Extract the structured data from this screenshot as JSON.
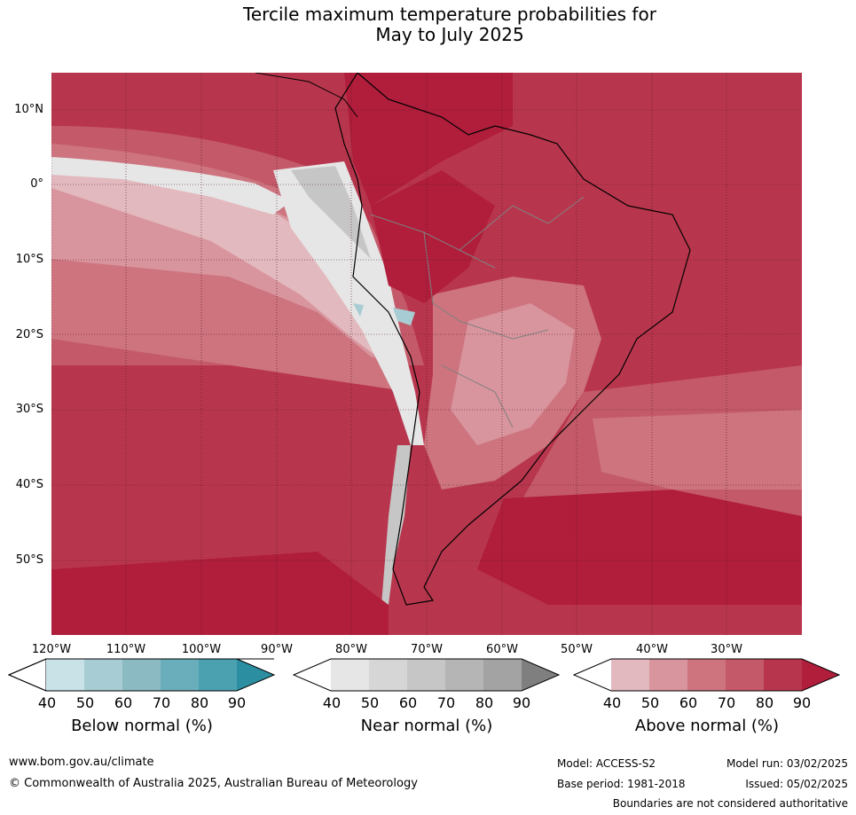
{
  "title_line1": "Tercile maximum temperature probabilities for",
  "title_line2": "May to July 2025",
  "lat_labels": [
    "10°N",
    "0°",
    "10°S",
    "20°S",
    "30°S",
    "40°S",
    "50°S"
  ],
  "lon_labels": [
    "120°W",
    "110°W",
    "100°W",
    "90°W",
    "80°W",
    "70°W",
    "60°W",
    "50°W",
    "40°W",
    "30°W"
  ],
  "colorbars": [
    {
      "title": "Below normal (%)",
      "ticks": [
        "40",
        "50",
        "60",
        "70",
        "80",
        "90"
      ],
      "colors": [
        "#ffffff",
        "#c9e2e8",
        "#a8ccd3",
        "#8bbac3",
        "#6aaebb",
        "#4ba1b0",
        "#2c8fa1"
      ]
    },
    {
      "title": "Near normal (%)",
      "ticks": [
        "40",
        "50",
        "60",
        "70",
        "80",
        "90"
      ],
      "colors": [
        "#ffffff",
        "#e6e6e6",
        "#d6d6d6",
        "#c6c6c6",
        "#b5b5b5",
        "#a3a3a3",
        "#7f7f7f"
      ]
    },
    {
      "title": "Above normal (%)",
      "ticks": [
        "40",
        "50",
        "60",
        "70",
        "80",
        "90"
      ],
      "colors": [
        "#ffffff",
        "#e2b9be",
        "#d9959e",
        "#cd747f",
        "#c45a69",
        "#b8364d",
        "#b01e3c"
      ]
    }
  ],
  "footer": {
    "website": "www.bom.gov.au/climate",
    "copyright": "© Commonwealth of Australia 2025, Australian Bureau of Meteorology",
    "model": "Model: ACCESS-S2",
    "base_period": "Base period: 1981-2018",
    "model_run": "Model run: 03/02/2025",
    "issued": "Issued: 05/02/2025",
    "disclaimer": "Boundaries are not considered authoritative"
  },
  "map_colors": {
    "above_90": "#b01e3c",
    "above_80": "#b8364d",
    "above_70": "#c45a69",
    "above_60": "#cd747f",
    "above_50": "#d9959e",
    "above_40": "#e2b9be",
    "near_40": "#e6e6e6",
    "near_60": "#c6c6c6",
    "below_50": "#a8ccd3"
  }
}
